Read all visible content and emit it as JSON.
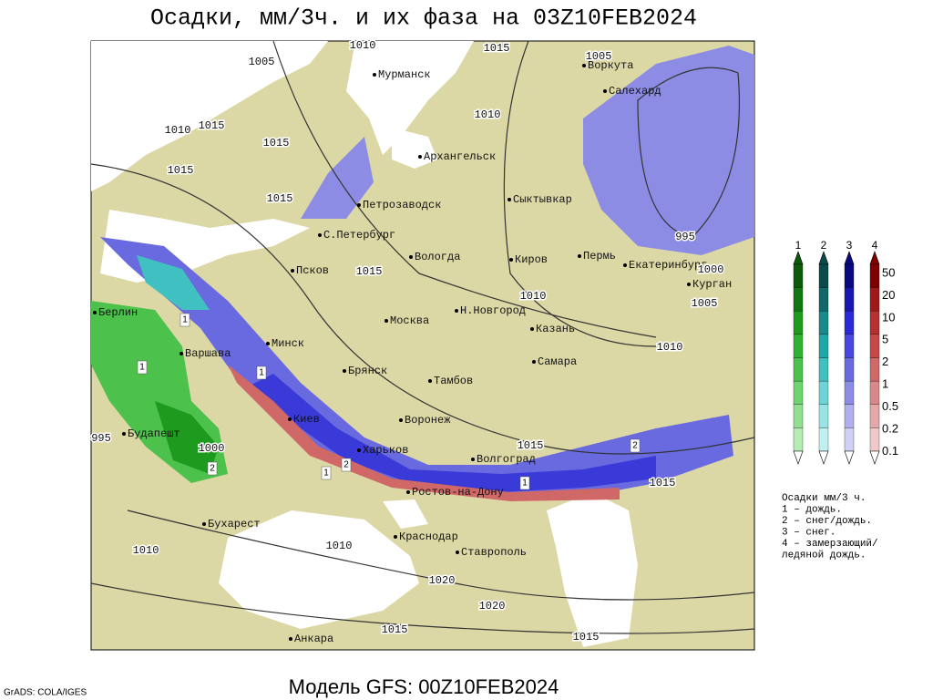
{
  "title": "Осадки, мм/3ч. и их фаза на 03Z10FEB2024",
  "footer": "Модель GFS: 00Z10FEB2024",
  "credit": "GrADS: COLA/IGES",
  "cities": [
    "Мурманск",
    "Воркута",
    "Салехард",
    "Архангельск",
    "Петрозаводск",
    "Сыктывкар",
    "С.Петербург",
    "Вологда",
    "Киров",
    "Пермь",
    "Екатеринбург",
    "Псков",
    "Курган",
    "Берлин",
    "Н.Новгород",
    "Москва",
    "Казань",
    "Минск",
    "Варшава",
    "Самара",
    "Брянск",
    "Тамбов",
    "Воронеж",
    "Киев",
    "Будапешт",
    "Харьков",
    "Волгоград",
    "Ростов-на-Дону",
    "Бухарест",
    "Краснодар",
    "Ставрополь",
    "Анкара"
  ],
  "isobar_labels": [
    1010,
    1015,
    1005,
    1005,
    1010,
    1010,
    1015,
    1015,
    1015,
    1015,
    995,
    1000,
    1005,
    1015,
    1010,
    1010,
    995,
    1000,
    1015,
    1015,
    1010,
    1010,
    1020,
    1020,
    1015,
    1015
  ],
  "phase_labels": [
    1,
    1,
    1,
    2,
    1,
    2,
    2,
    1
  ],
  "legend": {
    "columns": [
      {
        "label": "1",
        "colors": [
          "#0a5a0a",
          "#117711",
          "#1e9a1e",
          "#30b030",
          "#4cc24c",
          "#6ed46e",
          "#90e090",
          "#b4ecb4"
        ]
      },
      {
        "label": "2",
        "colors": [
          "#0a4a4a",
          "#106868",
          "#178a8a",
          "#20a8a8",
          "#40c0c0",
          "#6cd4d4",
          "#98e4e4",
          "#c0f0f0"
        ]
      },
      {
        "label": "3",
        "colors": [
          "#0a0a80",
          "#1818b0",
          "#2a2ad8",
          "#4848e0",
          "#6a6ae0",
          "#8c8ce4",
          "#b0b0ec",
          "#d0d0f4"
        ]
      },
      {
        "label": "4",
        "colors": [
          "#800000",
          "#a01818",
          "#b83030",
          "#c84848",
          "#d06868",
          "#d88888",
          "#e4a8a8",
          "#f0c8c8"
        ]
      }
    ],
    "scale": [
      50,
      20,
      10,
      5,
      2,
      1,
      0.5,
      0.2,
      0.1
    ],
    "notes": [
      "Осадки мм/3 ч.",
      "1 – дождь.",
      "2 – снег/дождь.",
      "3 – снег.",
      "4 – замерзающий/",
      "ледяной дождь."
    ]
  }
}
